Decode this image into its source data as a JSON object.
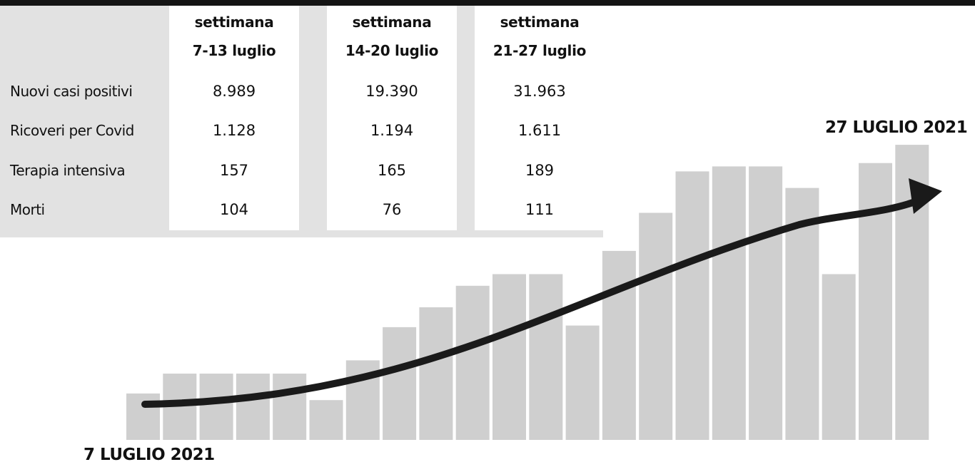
{
  "table": {
    "columns": [
      {
        "line1": "settimana",
        "line2": "7-13 luglio"
      },
      {
        "line1": "settimana",
        "line2": "14-20 luglio"
      },
      {
        "line1": "settimana",
        "line2": "21-27 luglio"
      }
    ],
    "rows": [
      {
        "label": "Nuovi casi positivi",
        "values": [
          "8.989",
          "19.390",
          "31.963"
        ]
      },
      {
        "label": "Ricoveri per Covid",
        "values": [
          "1.128",
          "1.194",
          "1.611"
        ]
      },
      {
        "label": "Terapia intensiva",
        "values": [
          "157",
          "165",
          "189"
        ]
      },
      {
        "label": "Morti",
        "values": [
          "104",
          "76",
          "111"
        ]
      }
    ]
  },
  "chart_data": {
    "type": "bar",
    "title": "",
    "xlabel": "",
    "ylabel": "",
    "start_label": "7 LUGLIO 2021",
    "end_label": "27 LUGLIO 2021",
    "bar_color": "#cfcfcf",
    "trend_color": "#1a1a1a",
    "has_trend_arrow": true,
    "values": [
      1.4,
      2.0,
      2.0,
      2.0,
      2.0,
      1.2,
      2.4,
      3.4,
      4.0,
      4.65,
      5.0,
      5.0,
      3.45,
      5.7,
      6.85,
      8.1,
      8.25,
      8.25,
      7.6,
      5.0,
      8.35,
      8.9
    ]
  }
}
